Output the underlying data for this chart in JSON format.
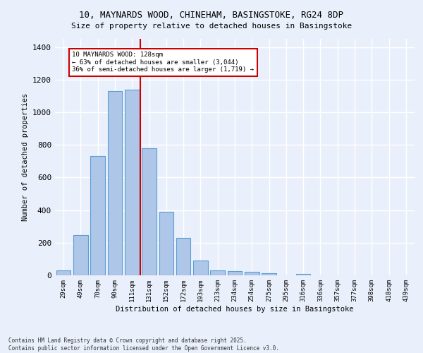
{
  "title_line1": "10, MAYNARDS WOOD, CHINEHAM, BASINGSTOKE, RG24 8DP",
  "title_line2": "Size of property relative to detached houses in Basingstoke",
  "xlabel": "Distribution of detached houses by size in Basingstoke",
  "ylabel": "Number of detached properties",
  "bar_labels": [
    "29sqm",
    "49sqm",
    "70sqm",
    "90sqm",
    "111sqm",
    "131sqm",
    "152sqm",
    "172sqm",
    "193sqm",
    "213sqm",
    "234sqm",
    "254sqm",
    "275sqm",
    "295sqm",
    "316sqm",
    "336sqm",
    "357sqm",
    "377sqm",
    "398sqm",
    "418sqm",
    "439sqm"
  ],
  "bar_values": [
    30,
    245,
    730,
    1130,
    1140,
    780,
    390,
    230,
    90,
    30,
    25,
    20,
    15,
    0,
    10,
    0,
    0,
    0,
    0,
    0,
    0
  ],
  "bar_color": "#aec6e8",
  "bar_edge_color": "#5a9fd4",
  "background_color": "#eaf0fb",
  "grid_color": "#ffffff",
  "vline_x": 5.0,
  "vline_color": "#cc0000",
  "annotation_text": "10 MAYNARDS WOOD: 128sqm\n← 63% of detached houses are smaller (3,044)\n36% of semi-detached houses are larger (1,719) →",
  "annotation_box_color": "#ffffff",
  "annotation_box_edge_color": "#cc0000",
  "footer_line1": "Contains HM Land Registry data © Crown copyright and database right 2025.",
  "footer_line2": "Contains public sector information licensed under the Open Government Licence v3.0.",
  "ylim": [
    0,
    1450
  ],
  "yticks": [
    0,
    200,
    400,
    600,
    800,
    1000,
    1200,
    1400
  ]
}
